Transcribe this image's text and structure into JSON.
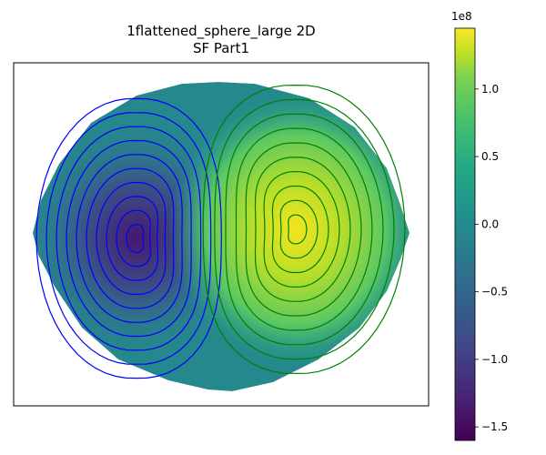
{
  "chart_data": {
    "type": "heatmap",
    "title": "1flattened_sphere_large 2D",
    "subtitle": "SF Part1",
    "colorbar": {
      "colormap": "viridis",
      "range": [
        -160000000.0,
        145000000.0
      ],
      "exponent_label": "1e8",
      "ticks": [
        {
          "value": 1.0,
          "label": "1.0"
        },
        {
          "value": 0.5,
          "label": "0.5"
        },
        {
          "value": 0.0,
          "label": "0.0"
        },
        {
          "value": -0.5,
          "label": "−0.5"
        },
        {
          "value": -1.0,
          "label": "−1.0"
        },
        {
          "value": -1.5,
          "label": "−1.5"
        }
      ]
    },
    "field": {
      "shape": "flattened ellipse",
      "extremes": [
        {
          "kind": "minimum",
          "value": -160000000.0,
          "contour_color": "#0000ff"
        },
        {
          "kind": "maximum",
          "value": 145000000.0,
          "contour_color": "#008000"
        }
      ],
      "contour_levels_per_side": 10
    }
  }
}
